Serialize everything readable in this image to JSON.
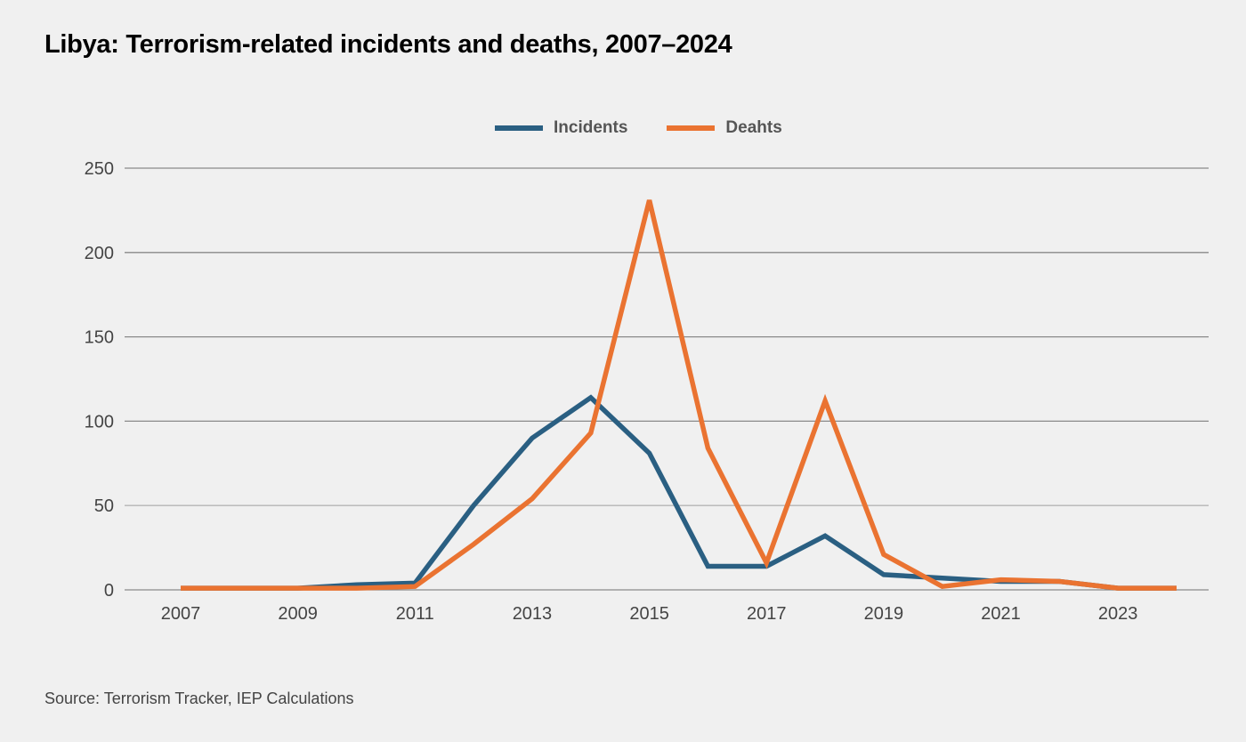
{
  "title": "Libya: Terrorism-related incidents and deaths, 2007–2024",
  "source": "Source: Terrorism Tracker, IEP Calculations",
  "colors": {
    "incidents": "#2a5f82",
    "deaths": "#ea7331",
    "grid": "#8a8a8a",
    "background": "#f0f0f0"
  },
  "chart_data": {
    "type": "line",
    "title": "Libya: Terrorism-related incidents and deaths, 2007–2024",
    "xlabel": "",
    "ylabel": "",
    "x": [
      2007,
      2008,
      2009,
      2010,
      2011,
      2012,
      2013,
      2014,
      2015,
      2016,
      2017,
      2018,
      2019,
      2020,
      2021,
      2022,
      2023,
      2024
    ],
    "x_tick_labels": [
      "2007",
      "2009",
      "2011",
      "2013",
      "2015",
      "2017",
      "2019",
      "2021",
      "2023"
    ],
    "y_ticks": [
      0,
      50,
      100,
      150,
      200,
      250
    ],
    "ylim": [
      0,
      250
    ],
    "grid": true,
    "legend_position": "top-center",
    "series": [
      {
        "name": "Incidents",
        "color": "#2a5f82",
        "values": [
          1,
          1,
          1,
          3,
          4,
          50,
          90,
          114,
          81,
          14,
          14,
          32,
          9,
          7,
          5,
          5,
          1,
          1
        ]
      },
      {
        "name": "Deahts",
        "color": "#ea7331",
        "values": [
          1,
          1,
          1,
          1,
          2,
          27,
          54,
          93,
          231,
          84,
          16,
          112,
          21,
          2,
          6,
          5,
          1,
          1
        ]
      }
    ]
  }
}
